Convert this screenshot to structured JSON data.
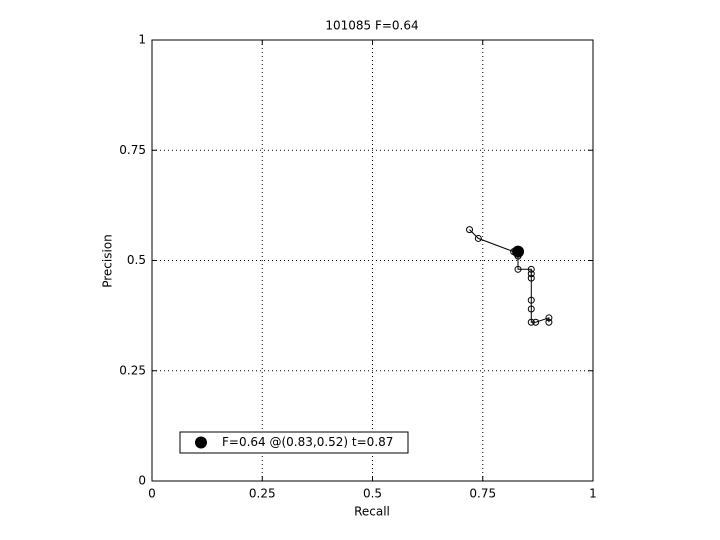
{
  "chart_data": {
    "type": "scatter",
    "title": "101085 F=0.64",
    "x_label": "Recall",
    "y_label": "Precision",
    "xlim": [
      0,
      1
    ],
    "ylim": [
      0,
      1
    ],
    "xticks": [
      0,
      0.25,
      0.5,
      0.75,
      1
    ],
    "yticks": [
      0,
      0.25,
      0.5,
      0.75,
      1
    ],
    "grid": true,
    "legend": "lower left",
    "series": [
      {
        "color": "#000000",
        "line": true,
        "x": [
          0.72,
          0.74,
          0.82,
          0.83,
          0.83,
          0.86,
          0.86,
          0.86,
          0.86,
          0.86,
          0.86,
          0.87,
          0.9,
          0.9
        ],
        "y": [
          0.57,
          0.55,
          0.52,
          0.51,
          0.48,
          0.48,
          0.47,
          0.46,
          0.41,
          0.39,
          0.36,
          0.36,
          0.37,
          0.36
        ]
      },
      {
        "name": "F=0.64 @(0.83,0.52) t=0.87",
        "color": "#000000",
        "line": false,
        "x": [
          0.83
        ],
        "y": [
          0.52
        ]
      }
    ]
  }
}
